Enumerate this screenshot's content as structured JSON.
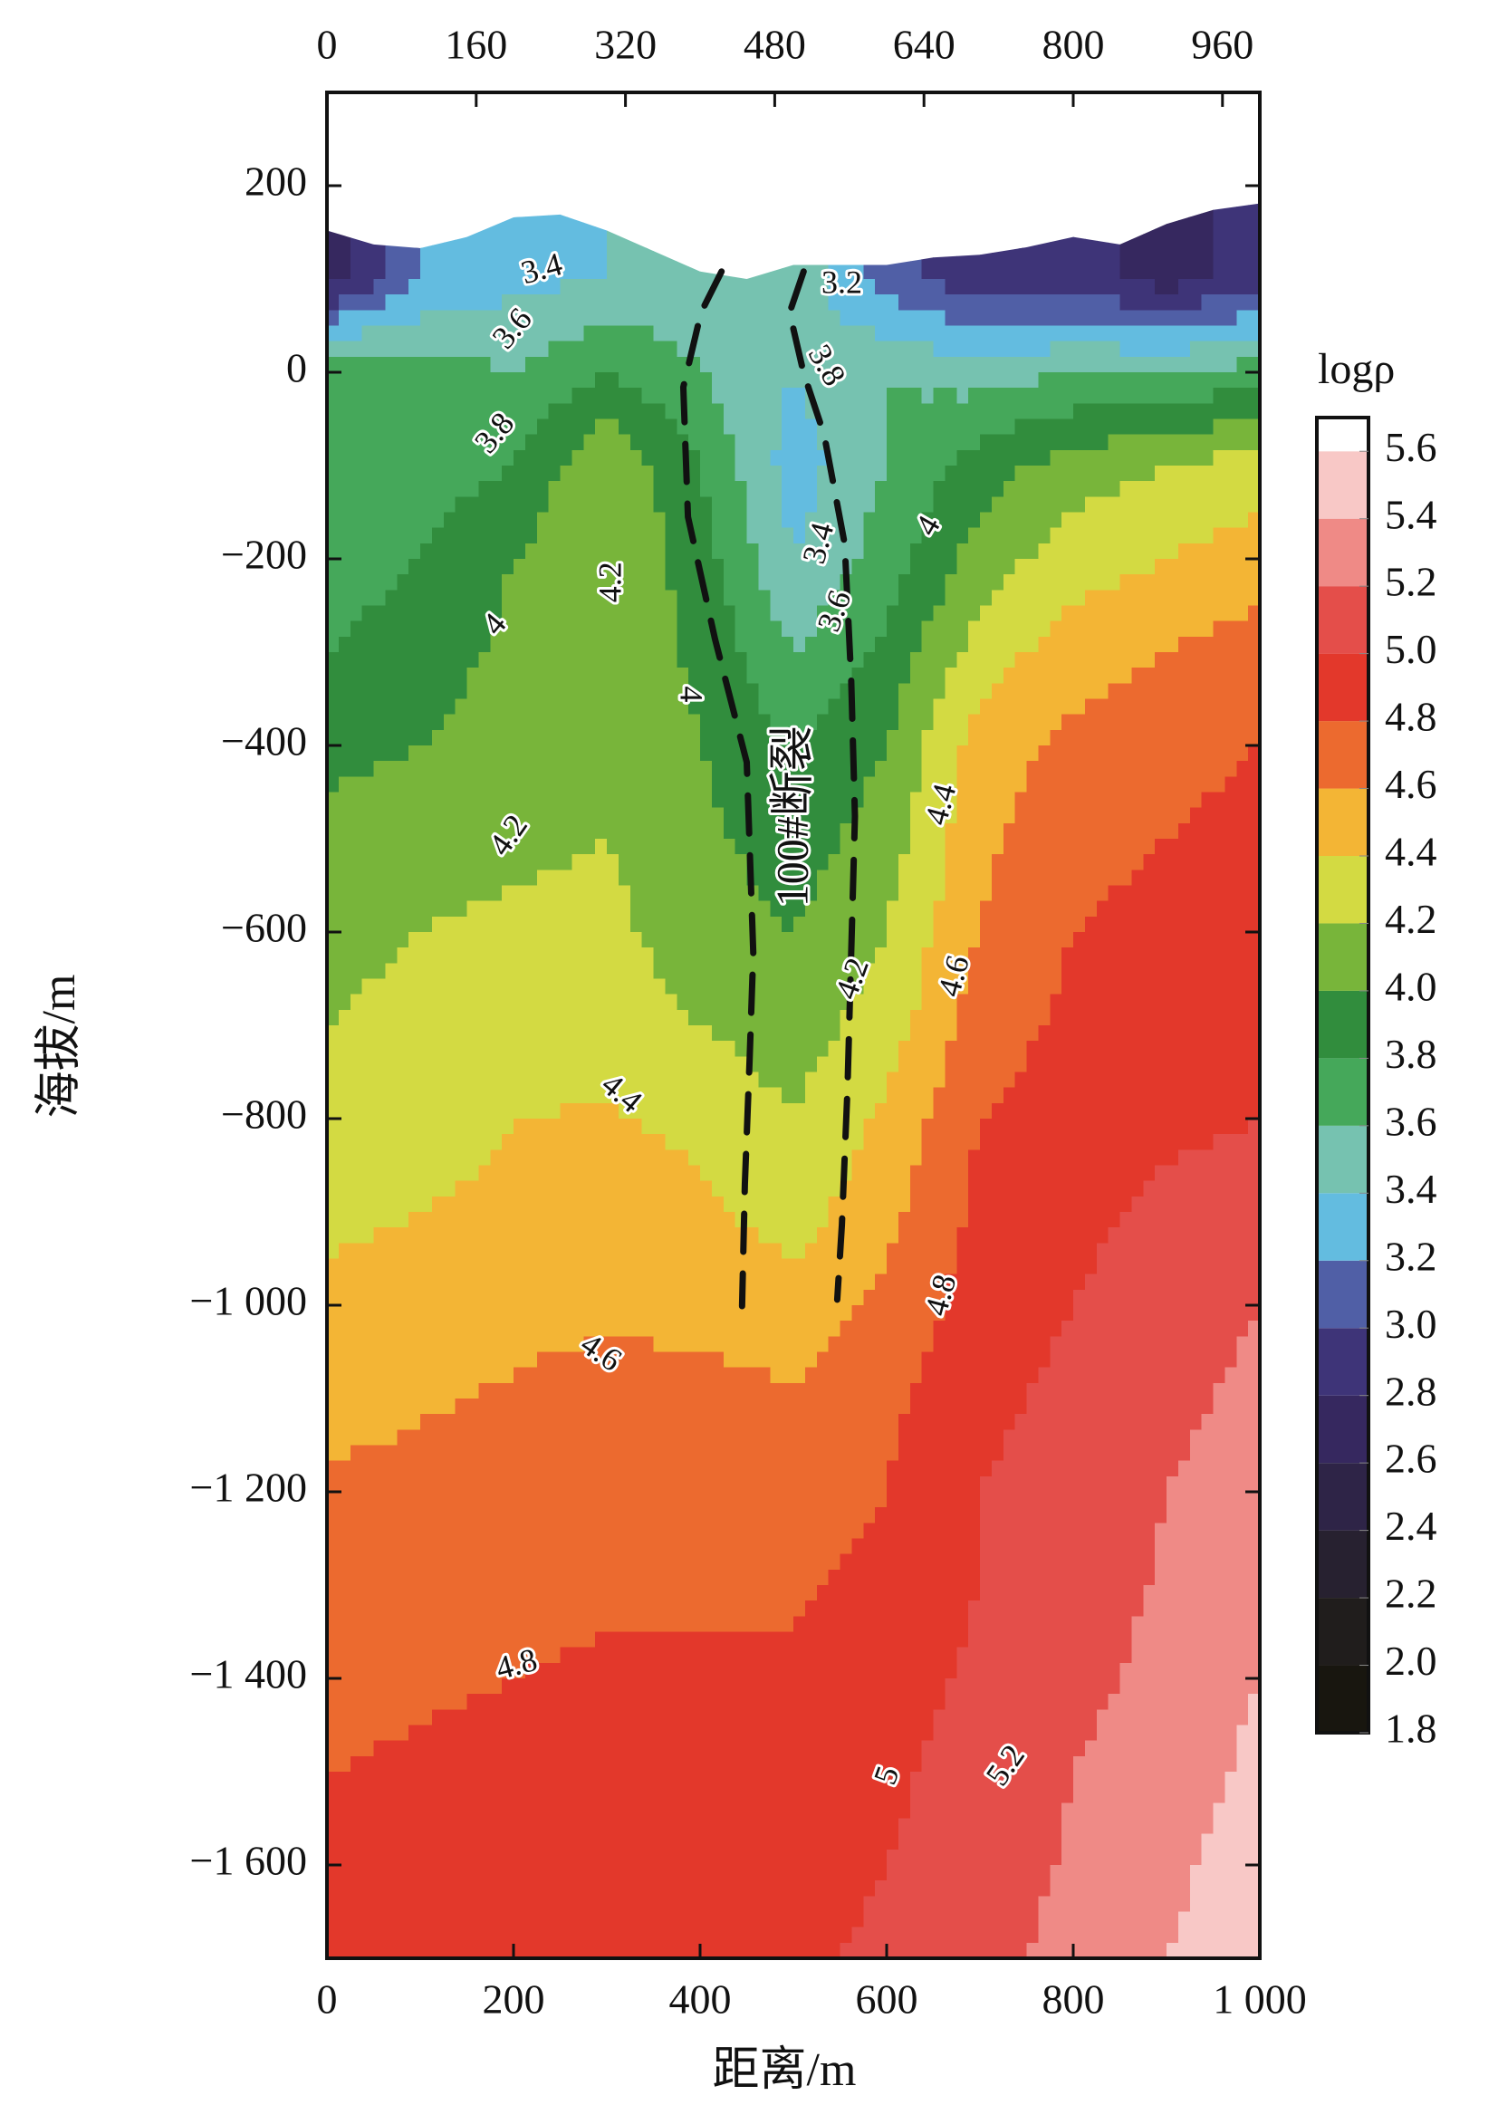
{
  "chart_data": {
    "type": "contour",
    "xlabel": "距离/m",
    "ylabel": "海拔/m",
    "xlim": [
      0,
      1000
    ],
    "ylim": [
      -1700,
      300
    ],
    "xticks": [
      0,
      200,
      400,
      600,
      800,
      {
        "value": 1000,
        "label": "1 000"
      }
    ],
    "x2ticks": [
      0,
      160,
      320,
      480,
      640,
      800,
      960
    ],
    "yticks": [
      200,
      0,
      {
        "value": -200,
        "label": "−200"
      },
      {
        "value": -400,
        "label": "−400"
      },
      {
        "value": -600,
        "label": "−600"
      },
      {
        "value": -800,
        "label": "−800"
      },
      {
        "value": -1000,
        "label": "−1 000"
      },
      {
        "value": -1200,
        "label": "−1 200"
      },
      {
        "value": -1400,
        "label": "−1 400"
      },
      {
        "value": -1600,
        "label": "−1 600"
      }
    ],
    "x": [
      0,
      100,
      200,
      300,
      400,
      500,
      600,
      700,
      800,
      900,
      1000
    ],
    "y": [
      200,
      100,
      0,
      -100,
      -200,
      -300,
      -400,
      -500,
      -600,
      -700,
      -800,
      -900,
      -1000,
      -1100,
      -1200,
      -1300,
      -1400,
      -1500,
      -1600,
      -1700
    ],
    "z": [
      [
        null,
        null,
        null,
        null,
        null,
        null,
        null,
        null,
        null,
        null,
        null
      ],
      [
        2.7,
        3.2,
        3.35,
        3.4,
        3.5,
        3.55,
        3.1,
        2.85,
        2.9,
        2.7,
        2.9
      ],
      [
        3.8,
        3.7,
        3.6,
        3.8,
        3.6,
        3.4,
        3.6,
        3.5,
        3.6,
        3.6,
        3.7
      ],
      [
        3.75,
        3.7,
        3.8,
        4.2,
        3.8,
        3.3,
        3.6,
        3.9,
        4.1,
        4.2,
        4.3
      ],
      [
        3.7,
        3.8,
        4.0,
        4.2,
        3.9,
        3.4,
        3.7,
        4.1,
        4.3,
        4.4,
        4.5
      ],
      [
        3.8,
        3.9,
        4.05,
        4.15,
        3.95,
        3.6,
        3.85,
        4.3,
        4.5,
        4.6,
        4.7
      ],
      [
        3.95,
        4.0,
        4.1,
        4.2,
        4.0,
        3.8,
        4.0,
        4.5,
        4.65,
        4.75,
        4.8
      ],
      [
        4.05,
        4.1,
        4.15,
        4.2,
        4.05,
        3.9,
        4.1,
        4.55,
        4.75,
        4.8,
        4.85
      ],
      [
        4.15,
        4.2,
        4.25,
        4.25,
        4.1,
        4.0,
        4.2,
        4.6,
        4.8,
        4.85,
        4.9
      ],
      [
        4.2,
        4.25,
        4.3,
        4.3,
        4.2,
        4.1,
        4.3,
        4.7,
        4.85,
        4.9,
        4.95
      ],
      [
        4.25,
        4.3,
        4.4,
        4.42,
        4.35,
        4.2,
        4.45,
        4.8,
        4.9,
        4.95,
        5.0
      ],
      [
        4.35,
        4.4,
        4.45,
        4.5,
        4.45,
        4.3,
        4.55,
        4.85,
        4.95,
        5.05,
        5.1
      ],
      [
        4.45,
        4.5,
        4.55,
        4.58,
        4.55,
        4.5,
        4.65,
        4.9,
        5.0,
        5.1,
        5.2
      ],
      [
        4.55,
        4.58,
        4.62,
        4.65,
        4.65,
        4.62,
        4.75,
        4.95,
        5.05,
        5.15,
        5.25
      ],
      [
        4.62,
        4.65,
        4.7,
        4.72,
        4.72,
        4.72,
        4.8,
        5.0,
        5.1,
        5.2,
        5.3
      ],
      [
        4.7,
        4.72,
        4.76,
        4.78,
        4.78,
        4.78,
        4.85,
        5.0,
        5.12,
        5.22,
        5.35
      ],
      [
        4.75,
        4.78,
        4.8,
        4.82,
        4.82,
        4.82,
        4.88,
        5.05,
        5.15,
        5.25,
        5.4
      ],
      [
        4.8,
        4.82,
        4.84,
        4.86,
        4.86,
        4.86,
        4.95,
        5.1,
        5.2,
        5.3,
        5.45
      ],
      [
        4.82,
        4.84,
        4.86,
        4.88,
        4.88,
        4.9,
        5.0,
        5.12,
        5.22,
        5.35,
        5.5
      ],
      [
        4.84,
        4.86,
        4.88,
        4.9,
        4.9,
        4.95,
        5.05,
        5.15,
        5.25,
        5.4,
        5.55
      ]
    ],
    "surface": {
      "x": [
        0,
        50,
        100,
        150,
        200,
        250,
        300,
        350,
        400,
        450,
        500,
        550,
        600,
        650,
        700,
        750,
        800,
        850,
        900,
        950,
        1000
      ],
      "y": [
        152,
        137,
        133,
        145,
        166,
        169,
        152,
        130,
        108,
        100,
        115,
        115,
        115,
        123,
        126,
        134,
        145,
        137,
        159,
        174,
        181
      ]
    },
    "colorbar": {
      "label": "logρ",
      "lim": [
        1.8,
        5.7
      ],
      "levels": [
        1.8,
        {
          "value": 2,
          "label": "2.0"
        },
        2.2,
        2.4,
        2.6,
        2.8,
        {
          "value": 3,
          "label": "3.0"
        },
        3.2,
        3.4,
        3.6,
        3.8,
        {
          "value": 4,
          "label": "4.0"
        },
        4.2,
        4.4,
        4.6,
        4.8,
        {
          "value": 5,
          "label": "5.0"
        },
        5.2,
        5.4,
        5.6
      ],
      "colors": [
        "#18160f",
        "#201d1c",
        "#272130",
        "#2e2447",
        "#36285f",
        "#3e3478",
        "#505fa6",
        "#63bce0",
        "#76c2b0",
        "#45a85a",
        "#318d3d",
        "#78b53a",
        "#d3da42",
        "#f3b535",
        "#ec6a2f",
        "#e3382b",
        "#e44e4a",
        "#ef8a86",
        "#f8c8c6",
        "#ffffff"
      ]
    },
    "annotations": [
      {
        "text": "3.4",
        "x": 231,
        "y": 108
      },
      {
        "text": "3.6",
        "x": 201,
        "y": 45
      },
      {
        "text": "3.8",
        "x": 182,
        "y": -67
      },
      {
        "text": "4",
        "x": 182,
        "y": -272
      },
      {
        "text": "4.2",
        "x": 307,
        "y": -225
      },
      {
        "text": "4",
        "x": 387,
        "y": -345
      },
      {
        "text": "4.2",
        "x": 197,
        "y": -498
      },
      {
        "text": "4.4",
        "x": 314,
        "y": -775
      },
      {
        "text": "4.6",
        "x": 292,
        "y": -1053
      },
      {
        "text": "4.8",
        "x": 204,
        "y": -1388
      },
      {
        "text": "3.2",
        "x": 552,
        "y": 93
      },
      {
        "text": "3.8",
        "x": 533,
        "y": 6
      },
      {
        "text": "3.4",
        "x": 530,
        "y": -184
      },
      {
        "text": "3.6",
        "x": 547,
        "y": -257
      },
      {
        "text": "4",
        "x": 647,
        "y": -166
      },
      {
        "text": "4.4",
        "x": 661,
        "y": -464
      },
      {
        "text": "4.6",
        "x": 675,
        "y": -648
      },
      {
        "text": "4.2",
        "x": 566,
        "y": -651
      },
      {
        "text": "4.8",
        "x": 661,
        "y": -990
      },
      {
        "text": "5",
        "x": 603,
        "y": -1505
      },
      {
        "text": "5.2",
        "x": 730,
        "y": -1495
      }
    ],
    "fault_label": {
      "text": "100#断裂",
      "x": 504,
      "y": -476
    },
    "faults": [
      {
        "x": [
          423,
          401,
          382,
          387,
          416,
          450,
          457,
          453,
          448,
          445
        ],
        "y": [
          108,
          64,
          -16,
          -155,
          -286,
          -418,
          -622,
          -739,
          -870,
          -1001
        ]
      },
      {
        "x": [
          511,
          496,
          511,
          533,
          555,
          562,
          566,
          562,
          558,
          552,
          547
        ],
        "y": [
          108,
          64,
          -1,
          -67,
          -184,
          -330,
          -476,
          -622,
          -768,
          -914,
          -994
        ]
      }
    ]
  }
}
